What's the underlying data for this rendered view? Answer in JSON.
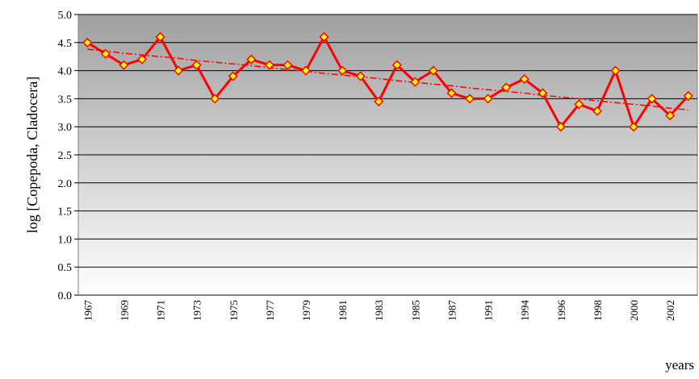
{
  "chart_data": {
    "type": "line",
    "y_label": "log [Copepoda, Cladocera]",
    "x_label": "years",
    "categories": [
      "1967",
      null,
      "1969",
      null,
      "1971",
      null,
      "1973",
      null,
      "1975",
      null,
      "1977",
      null,
      "1979",
      null,
      "1981",
      null,
      "1983",
      null,
      "1985",
      null,
      "1987",
      null,
      "1991",
      null,
      "1994",
      null,
      "1996",
      null,
      "1998",
      null,
      "2000",
      null,
      "2002",
      null
    ],
    "series": [
      {
        "color": "#ff0000",
        "marker_color": "#ffff00",
        "style": "solid",
        "values": [
          4.5,
          4.3,
          4.1,
          4.2,
          4.6,
          4.0,
          4.1,
          3.5,
          3.9,
          4.2,
          4.1,
          4.1,
          4.0,
          4.6,
          4.0,
          3.9,
          3.45,
          4.1,
          3.8,
          4.0,
          3.6,
          3.5,
          3.5,
          3.7,
          3.85,
          3.6,
          3.0,
          3.4,
          3.28,
          4.0,
          3.0,
          3.5,
          3.2,
          3.55
        ]
      },
      {
        "color": "#ff0000",
        "style": "dashdot",
        "values": [
          4.38,
          4.35,
          4.31,
          4.28,
          4.25,
          4.22,
          4.18,
          4.15,
          4.12,
          4.09,
          4.05,
          4.02,
          3.99,
          3.95,
          3.92,
          3.89,
          3.86,
          3.82,
          3.79,
          3.76,
          3.73,
          3.69,
          3.66,
          3.63,
          3.6,
          3.56,
          3.53,
          3.5,
          3.46,
          3.43,
          3.4,
          3.37,
          3.33,
          3.3
        ]
      }
    ],
    "ylim": [
      0,
      5
    ],
    "yticks": [
      {
        "value": 0,
        "label": "0.0"
      },
      {
        "value": 0.5,
        "label": "0.5"
      },
      {
        "value": 1,
        "label": "1.0"
      },
      {
        "value": 1.5,
        "label": "1.5"
      },
      {
        "value": 2,
        "label": "2.0"
      },
      {
        "value": 2.5,
        "label": "2.5"
      },
      {
        "value": 3,
        "label": "3.0"
      },
      {
        "value": 3.5,
        "label": "3.5"
      },
      {
        "value": 4,
        "label": "4.0"
      },
      {
        "value": 4.5,
        "label": "4.5"
      },
      {
        "value": 5,
        "label": "5.0"
      }
    ],
    "grid": true
  }
}
